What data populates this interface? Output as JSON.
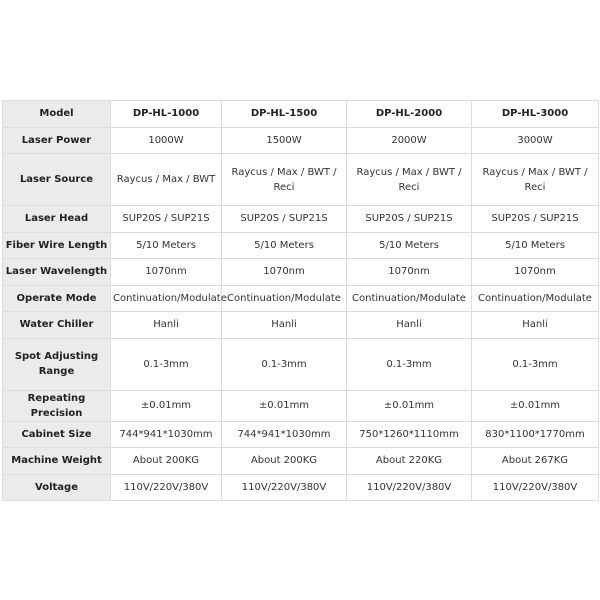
{
  "header": {
    "label": "Model",
    "models": [
      "DP-HL-1000",
      "DP-HL-1500",
      "DP-HL-2000",
      "DP-HL-3000"
    ]
  },
  "rows": [
    {
      "label": "Laser Power",
      "values": [
        "1000W",
        "1500W",
        "2000W",
        "3000W"
      ]
    },
    {
      "label": "Laser Source",
      "values": [
        "Raycus / Max / BWT",
        "Raycus / Max / BWT / Reci",
        "Raycus / Max / BWT / Reci",
        "Raycus / Max / BWT / Reci"
      ]
    },
    {
      "label": "Laser Head",
      "values": [
        "SUP20S / SUP21S",
        "SUP20S / SUP21S",
        "SUP20S / SUP21S",
        "SUP20S / SUP21S"
      ]
    },
    {
      "label": "Fiber Wire Length",
      "values": [
        "5/10 Meters",
        "5/10 Meters",
        "5/10 Meters",
        "5/10 Meters"
      ]
    },
    {
      "label": "Laser Wavelength",
      "values": [
        "1070nm",
        "1070nm",
        "1070nm",
        "1070nm"
      ]
    },
    {
      "label": "Operate Mode",
      "values": [
        "Continuation/Modulate",
        "Continuation/Modulate",
        "Continuation/Modulate",
        "Continuation/Modulate"
      ]
    },
    {
      "label": "Water Chiller",
      "values": [
        "Hanli",
        "Hanli",
        "Hanli",
        "Hanli"
      ]
    },
    {
      "label": "Spot Adjusting Range",
      "values": [
        "0.1-3mm",
        "0.1-3mm",
        "0.1-3mm",
        "0.1-3mm"
      ]
    },
    {
      "label": "Repeating Precision",
      "values": [
        "±0.01mm",
        "±0.01mm",
        "±0.01mm",
        "±0.01mm"
      ]
    },
    {
      "label": "Cabinet Size",
      "values": [
        "744*941*1030mm",
        "744*941*1030mm",
        "750*1260*1110mm",
        "830*1100*1770mm"
      ]
    },
    {
      "label": "Machine Weight",
      "values": [
        "About 200KG",
        "About 200KG",
        "About 220KG",
        "About 267KG"
      ]
    },
    {
      "label": "Voltage",
      "values": [
        "110V/220V/380V",
        "110V/220V/380V",
        "110V/220V/380V",
        "110V/220V/380V"
      ]
    }
  ]
}
